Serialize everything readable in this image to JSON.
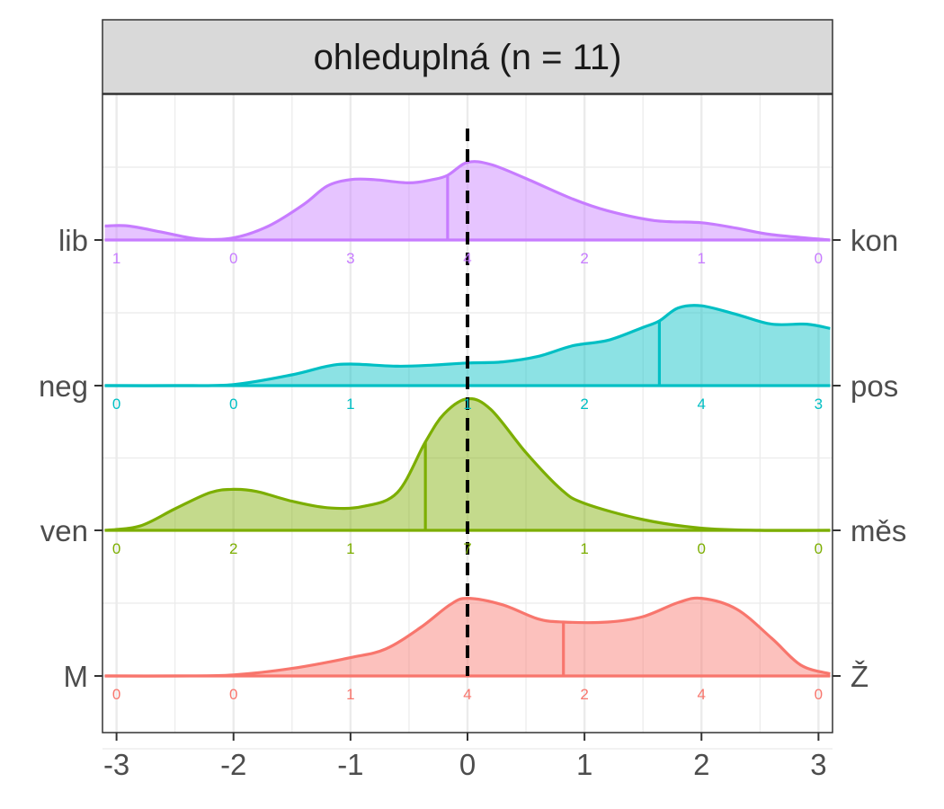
{
  "chart_data": {
    "type": "ridgeline",
    "panel_title": "ohleduplná (n = 11)",
    "x_ticks": [
      "-3",
      "-2",
      "-1",
      "0",
      "1",
      "2",
      "3"
    ],
    "xlim": [
      -3.12,
      3.12
    ],
    "reference_line_x": 0,
    "grid": true,
    "scale_positions": [
      -3,
      -2,
      -1,
      0,
      1,
      2,
      3
    ],
    "series": [
      {
        "left_label": "M",
        "right_label": "Ž",
        "color": "#F8766D",
        "counts": [
          "0",
          "0",
          "1",
          "4",
          "2",
          "4",
          "0"
        ],
        "mean": 0.82,
        "density": [
          [
            -3.1,
            0.0
          ],
          [
            -2.5,
            0.0
          ],
          [
            -2.0,
            0.01
          ],
          [
            -1.5,
            0.07
          ],
          [
            -1.0,
            0.17
          ],
          [
            -0.7,
            0.25
          ],
          [
            -0.4,
            0.45
          ],
          [
            -0.15,
            0.66
          ],
          [
            0.0,
            0.72
          ],
          [
            0.3,
            0.66
          ],
          [
            0.6,
            0.53
          ],
          [
            0.82,
            0.5
          ],
          [
            1.2,
            0.5
          ],
          [
            1.5,
            0.55
          ],
          [
            1.8,
            0.68
          ],
          [
            2.0,
            0.72
          ],
          [
            2.3,
            0.62
          ],
          [
            2.6,
            0.35
          ],
          [
            2.85,
            0.1
          ],
          [
            3.1,
            0.02
          ]
        ]
      },
      {
        "left_label": "ven",
        "right_label": "měs",
        "color": "#7CAE00",
        "counts": [
          "0",
          "2",
          "1",
          "7",
          "1",
          "0",
          "0"
        ],
        "mean": -0.36,
        "density": [
          [
            -3.1,
            0.0
          ],
          [
            -2.8,
            0.04
          ],
          [
            -2.5,
            0.2
          ],
          [
            -2.2,
            0.35
          ],
          [
            -2.0,
            0.38
          ],
          [
            -1.8,
            0.36
          ],
          [
            -1.5,
            0.27
          ],
          [
            -1.2,
            0.21
          ],
          [
            -0.9,
            0.22
          ],
          [
            -0.6,
            0.35
          ],
          [
            -0.36,
            0.82
          ],
          [
            -0.2,
            1.08
          ],
          [
            0.0,
            1.22
          ],
          [
            0.2,
            1.12
          ],
          [
            0.5,
            0.72
          ],
          [
            0.8,
            0.38
          ],
          [
            1.0,
            0.25
          ],
          [
            1.5,
            0.1
          ],
          [
            2.0,
            0.02
          ],
          [
            2.5,
            0.0
          ],
          [
            3.1,
            0.0
          ]
        ]
      },
      {
        "left_label": "neg",
        "right_label": "pos",
        "color": "#00BFC4",
        "counts": [
          "0",
          "0",
          "1",
          "1",
          "2",
          "4",
          "3"
        ],
        "mean": 1.64,
        "density": [
          [
            -3.1,
            0.0
          ],
          [
            -2.5,
            0.0
          ],
          [
            -2.0,
            0.01
          ],
          [
            -1.5,
            0.1
          ],
          [
            -1.2,
            0.18
          ],
          [
            -1.0,
            0.2
          ],
          [
            -0.6,
            0.18
          ],
          [
            -0.3,
            0.19
          ],
          [
            0.0,
            0.21
          ],
          [
            0.3,
            0.22
          ],
          [
            0.6,
            0.27
          ],
          [
            0.9,
            0.37
          ],
          [
            1.2,
            0.42
          ],
          [
            1.5,
            0.54
          ],
          [
            1.64,
            0.6
          ],
          [
            1.8,
            0.72
          ],
          [
            2.0,
            0.74
          ],
          [
            2.3,
            0.66
          ],
          [
            2.6,
            0.57
          ],
          [
            2.9,
            0.57
          ],
          [
            3.1,
            0.53
          ]
        ]
      },
      {
        "left_label": "lib",
        "right_label": "kon",
        "color": "#C77CFF",
        "counts": [
          "1",
          "0",
          "3",
          "4",
          "2",
          "1",
          "0"
        ],
        "mean": -0.17,
        "density": [
          [
            -3.1,
            0.13
          ],
          [
            -2.9,
            0.13
          ],
          [
            -2.6,
            0.07
          ],
          [
            -2.3,
            0.01
          ],
          [
            -2.0,
            0.02
          ],
          [
            -1.7,
            0.13
          ],
          [
            -1.4,
            0.33
          ],
          [
            -1.2,
            0.5
          ],
          [
            -1.0,
            0.56
          ],
          [
            -0.8,
            0.56
          ],
          [
            -0.5,
            0.53
          ],
          [
            -0.3,
            0.56
          ],
          [
            -0.17,
            0.6
          ],
          [
            0.0,
            0.72
          ],
          [
            0.2,
            0.7
          ],
          [
            0.5,
            0.57
          ],
          [
            0.9,
            0.38
          ],
          [
            1.2,
            0.27
          ],
          [
            1.6,
            0.18
          ],
          [
            2.0,
            0.16
          ],
          [
            2.3,
            0.11
          ],
          [
            2.6,
            0.05
          ],
          [
            3.1,
            0.0
          ]
        ]
      }
    ]
  }
}
